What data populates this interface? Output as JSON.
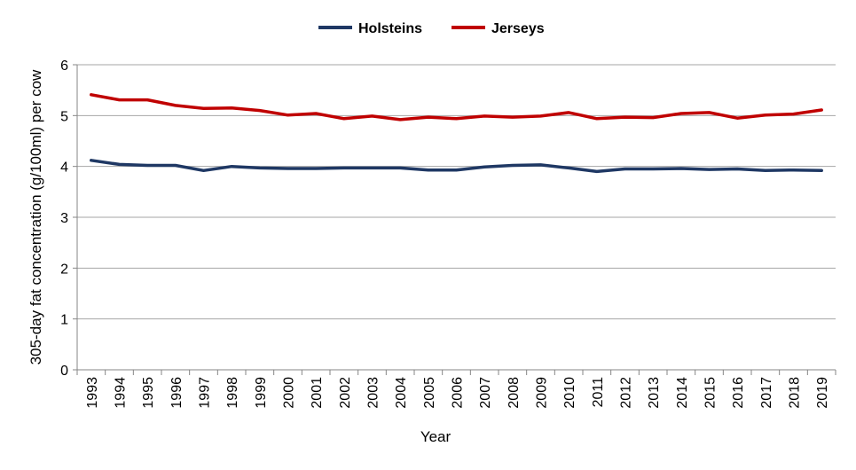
{
  "chart_data": {
    "type": "line",
    "title": "",
    "xlabel": "Year",
    "ylabel": "305-day fat concentration (g/100ml) per cow",
    "ylim": [
      0,
      6
    ],
    "yticks": [
      "0",
      "1",
      "2",
      "3",
      "4",
      "5",
      "6"
    ],
    "grid": true,
    "legend_position": "top-center",
    "categories": [
      "1993",
      "1994",
      "1995",
      "1996",
      "1997",
      "1998",
      "1999",
      "2000",
      "2001",
      "2002",
      "2003",
      "2004",
      "2005",
      "2006",
      "2007",
      "2008",
      "2009",
      "2010",
      "2011",
      "2012",
      "2013",
      "2014",
      "2015",
      "2016",
      "2017",
      "2018",
      "2019"
    ],
    "series": [
      {
        "name": "Holsteins",
        "color": "#1f3864",
        "values": [
          4.12,
          4.04,
          4.02,
          4.02,
          3.92,
          4.0,
          3.97,
          3.96,
          3.96,
          3.97,
          3.97,
          3.97,
          3.93,
          3.93,
          3.99,
          4.02,
          4.03,
          3.97,
          3.9,
          3.95,
          3.95,
          3.96,
          3.94,
          3.95,
          3.92,
          3.93,
          3.92
        ]
      },
      {
        "name": "Jerseys",
        "color": "#c00000",
        "values": [
          5.41,
          5.31,
          5.31,
          5.2,
          5.14,
          5.15,
          5.1,
          5.01,
          5.04,
          4.94,
          4.99,
          4.92,
          4.97,
          4.94,
          4.99,
          4.97,
          4.99,
          5.06,
          4.94,
          4.97,
          4.96,
          5.04,
          5.06,
          4.95,
          5.01,
          5.03,
          5.11
        ]
      }
    ]
  }
}
